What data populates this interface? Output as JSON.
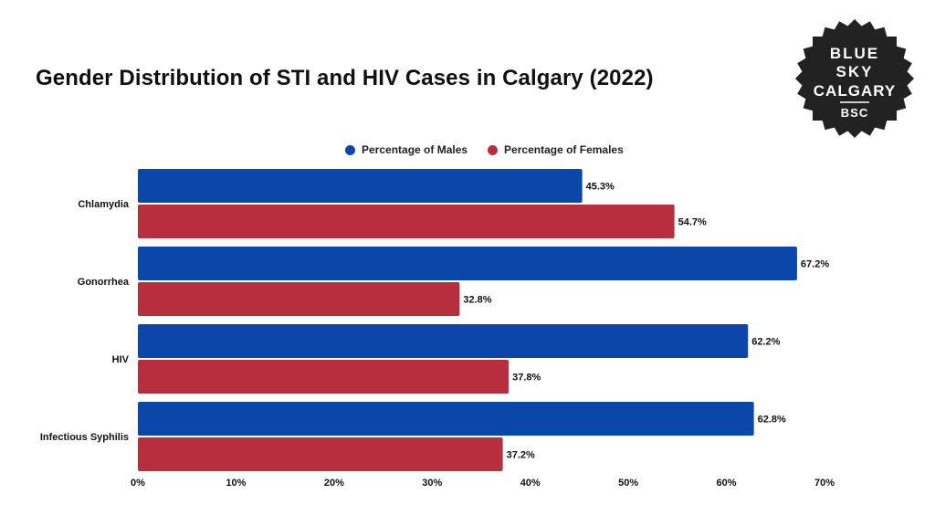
{
  "chart_data": {
    "type": "bar",
    "orientation": "horizontal",
    "title": "Gender Distribution of STI and HIV Cases in Calgary (2022)",
    "categories": [
      "Chlamydia",
      "Gonorrhea",
      "HIV",
      "Infectious Syphilis"
    ],
    "series": [
      {
        "name": "Percentage of Males",
        "color": "#0b47a8",
        "values": [
          45.3,
          67.2,
          62.2,
          62.8
        ],
        "labels": [
          "45.3%",
          "67.2%",
          "62.2%",
          "62.8%"
        ]
      },
      {
        "name": "Percentage of Females",
        "color": "#b72f3f",
        "values": [
          54.7,
          32.8,
          37.8,
          37.2
        ],
        "labels": [
          "54.7%",
          "32.8%",
          "37.8%",
          "37.2%"
        ]
      }
    ],
    "xlim": [
      0,
      70
    ],
    "xticks": [
      0,
      10,
      20,
      30,
      40,
      50,
      60,
      70
    ],
    "xtick_labels": [
      "0%",
      "10%",
      "20%",
      "30%",
      "40%",
      "50%",
      "60%",
      "70%"
    ],
    "legend_position": "top-center",
    "grid": false
  },
  "logo": {
    "lines": [
      "BLUE",
      "SKY",
      "CALGARY",
      "BSC"
    ],
    "color": "#222222"
  }
}
